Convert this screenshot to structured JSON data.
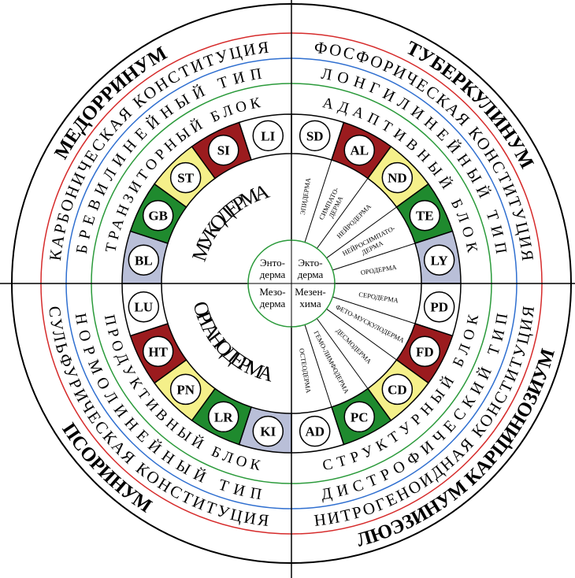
{
  "quadrants": [
    {
      "remedy": "МЕДОРРИНУМ",
      "constitution": "КАРБОНИЧЕСКАЯ КОНСТИТУЦИЯ",
      "type": "БРЕВИЛИНЕЙНЫЙ ТИП",
      "block": "ТРАНЗИТОРНЫЙ БЛОК"
    },
    {
      "remedy": "ТУБЕРКУЛИНУМ",
      "constitution": "ФОСФОРИЧЕСКАЯ КОНСТИТУЦИЯ",
      "type": "ЛОНГИЛИНЕЙНЫЙ ТИП",
      "block": "АДАПТИВНЫЙ БЛОК"
    },
    {
      "remedy": "ЛЮЭЗИНУМ КАРЦИНОЗИУМ",
      "constitution": "НИТРОГЕНОИДНАЯ КОНСТИТУЦИЯ",
      "type": "ДИСТРОФИЧЕСКИЙ ТИП",
      "block": "СТРУКТУРНЫЙ БЛОК"
    },
    {
      "remedy": "ПСОРИНУМ",
      "constitution": "СУЛЬФУРИЧЕСКАЯ КОНСТИТУЦИЯ",
      "type": "НОРМОЛИНЕЙНЫЙ ТИП",
      "block": "ПРОДУКТИВНЫЙ БЛОК"
    }
  ],
  "layers": [
    "МУКОДЕРМА",
    "ОРГАНОДЕРМА"
  ],
  "germ_layers": [
    [
      "Энто-",
      "дерма"
    ],
    [
      "Экто-",
      "дерма"
    ],
    [
      "Мезен-",
      "хима"
    ],
    [
      "Мезо-",
      "дерма"
    ]
  ],
  "segments": [
    {
      "code": "SD",
      "color": "#ffffff"
    },
    {
      "code": "AL",
      "color": "#9b1b1e"
    },
    {
      "code": "ND",
      "color": "#f5f08a"
    },
    {
      "code": "TE",
      "color": "#1f8a2e"
    },
    {
      "code": "LY",
      "color": "#b9bfd8"
    },
    {
      "code": "PD",
      "color": "#ffffff"
    },
    {
      "code": "FD",
      "color": "#9b1b1e"
    },
    {
      "code": "CD",
      "color": "#f5f08a"
    },
    {
      "code": "PC",
      "color": "#1f8a2e"
    },
    {
      "code": "AD",
      "color": "#ffffff"
    },
    {
      "code": "KI",
      "color": "#b9bfd8"
    },
    {
      "code": "LR",
      "color": "#1f8a2e"
    },
    {
      "code": "PN",
      "color": "#f5f08a"
    },
    {
      "code": "HT",
      "color": "#9b1b1e"
    },
    {
      "code": "LU",
      "color": "#ffffff"
    },
    {
      "code": "BL",
      "color": "#b9bfd8"
    },
    {
      "code": "GB",
      "color": "#1f8a2e"
    },
    {
      "code": "ST",
      "color": "#f5f08a"
    },
    {
      "code": "SI",
      "color": "#9b1b1e"
    },
    {
      "code": "LI",
      "color": "#ffffff"
    }
  ],
  "sectors": [
    [
      "ЭПИДЕРМА"
    ],
    [
      "СИМПАТО-",
      "ДЕРМА"
    ],
    [
      "НЕЙРОДЕРМА"
    ],
    [
      "НЕЙРОСИМПАТО-",
      "ДЕРМА"
    ],
    [
      "ОРОДЕРМА"
    ],
    [
      "СЕРОДЕРМА"
    ],
    [
      "ФЕТО-МУСКУЛОДЕРМА"
    ],
    [
      "ДЕСМОДЕРМА"
    ],
    [
      "ГЕМО-ЛИМФОДЕРМА"
    ],
    [
      "ОСТЕОДЕРМА"
    ]
  ]
}
